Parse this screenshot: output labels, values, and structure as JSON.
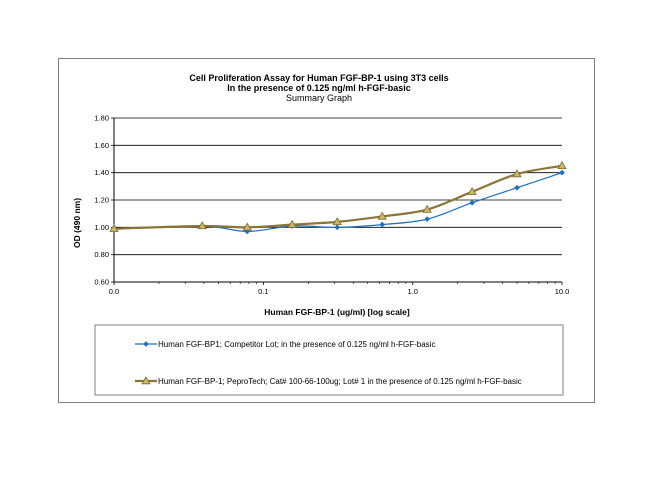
{
  "chart_data": {
    "type": "line",
    "title": "Cell Proliferation Assay for Human FGF-BP-1 using 3T3 cells",
    "title_line2": "In the presence of 0.125 ng/ml h-FGF-basic",
    "subtitle": "Summary Graph",
    "xlabel": "Human FGF-BP-1 (ug/ml) [log scale]",
    "ylabel": "OD (490 nm)",
    "x_scale": "log",
    "x_ticks": [
      "0.0",
      "0.1",
      "1.0",
      "10.0"
    ],
    "y_ticks": [
      "0.60",
      "0.80",
      "1.00",
      "1.20",
      "1.40",
      "1.60",
      "1.80"
    ],
    "ylim": [
      0.6,
      1.8
    ],
    "grid": "horizontal",
    "legend_position": "bottom",
    "series": [
      {
        "name": "Human FGF-BP1; Competitor Lot; in the presence of 0.125 ng/ml h-FGF-basic",
        "color": "#1f6fbf",
        "marker": "diamond",
        "x": [
          0.01,
          0.039,
          0.078,
          0.156,
          0.3125,
          0.625,
          1.25,
          2.5,
          5,
          10
        ],
        "y": [
          0.99,
          1.01,
          0.97,
          1.01,
          1.0,
          1.02,
          1.06,
          1.18,
          1.29,
          1.4
        ]
      },
      {
        "name": "Human FGF-BP-1; PeproTech; Cat# 100-66-100ug; Lot# 1 in the presence of 0.125 ng/ml h-FGF-basic",
        "color": "#8b7536",
        "marker": "triangle",
        "x": [
          0.01,
          0.039,
          0.078,
          0.156,
          0.3125,
          0.625,
          1.25,
          2.5,
          5,
          10
        ],
        "y": [
          0.99,
          1.01,
          1.0,
          1.02,
          1.04,
          1.08,
          1.13,
          1.26,
          1.39,
          1.45
        ]
      }
    ]
  }
}
